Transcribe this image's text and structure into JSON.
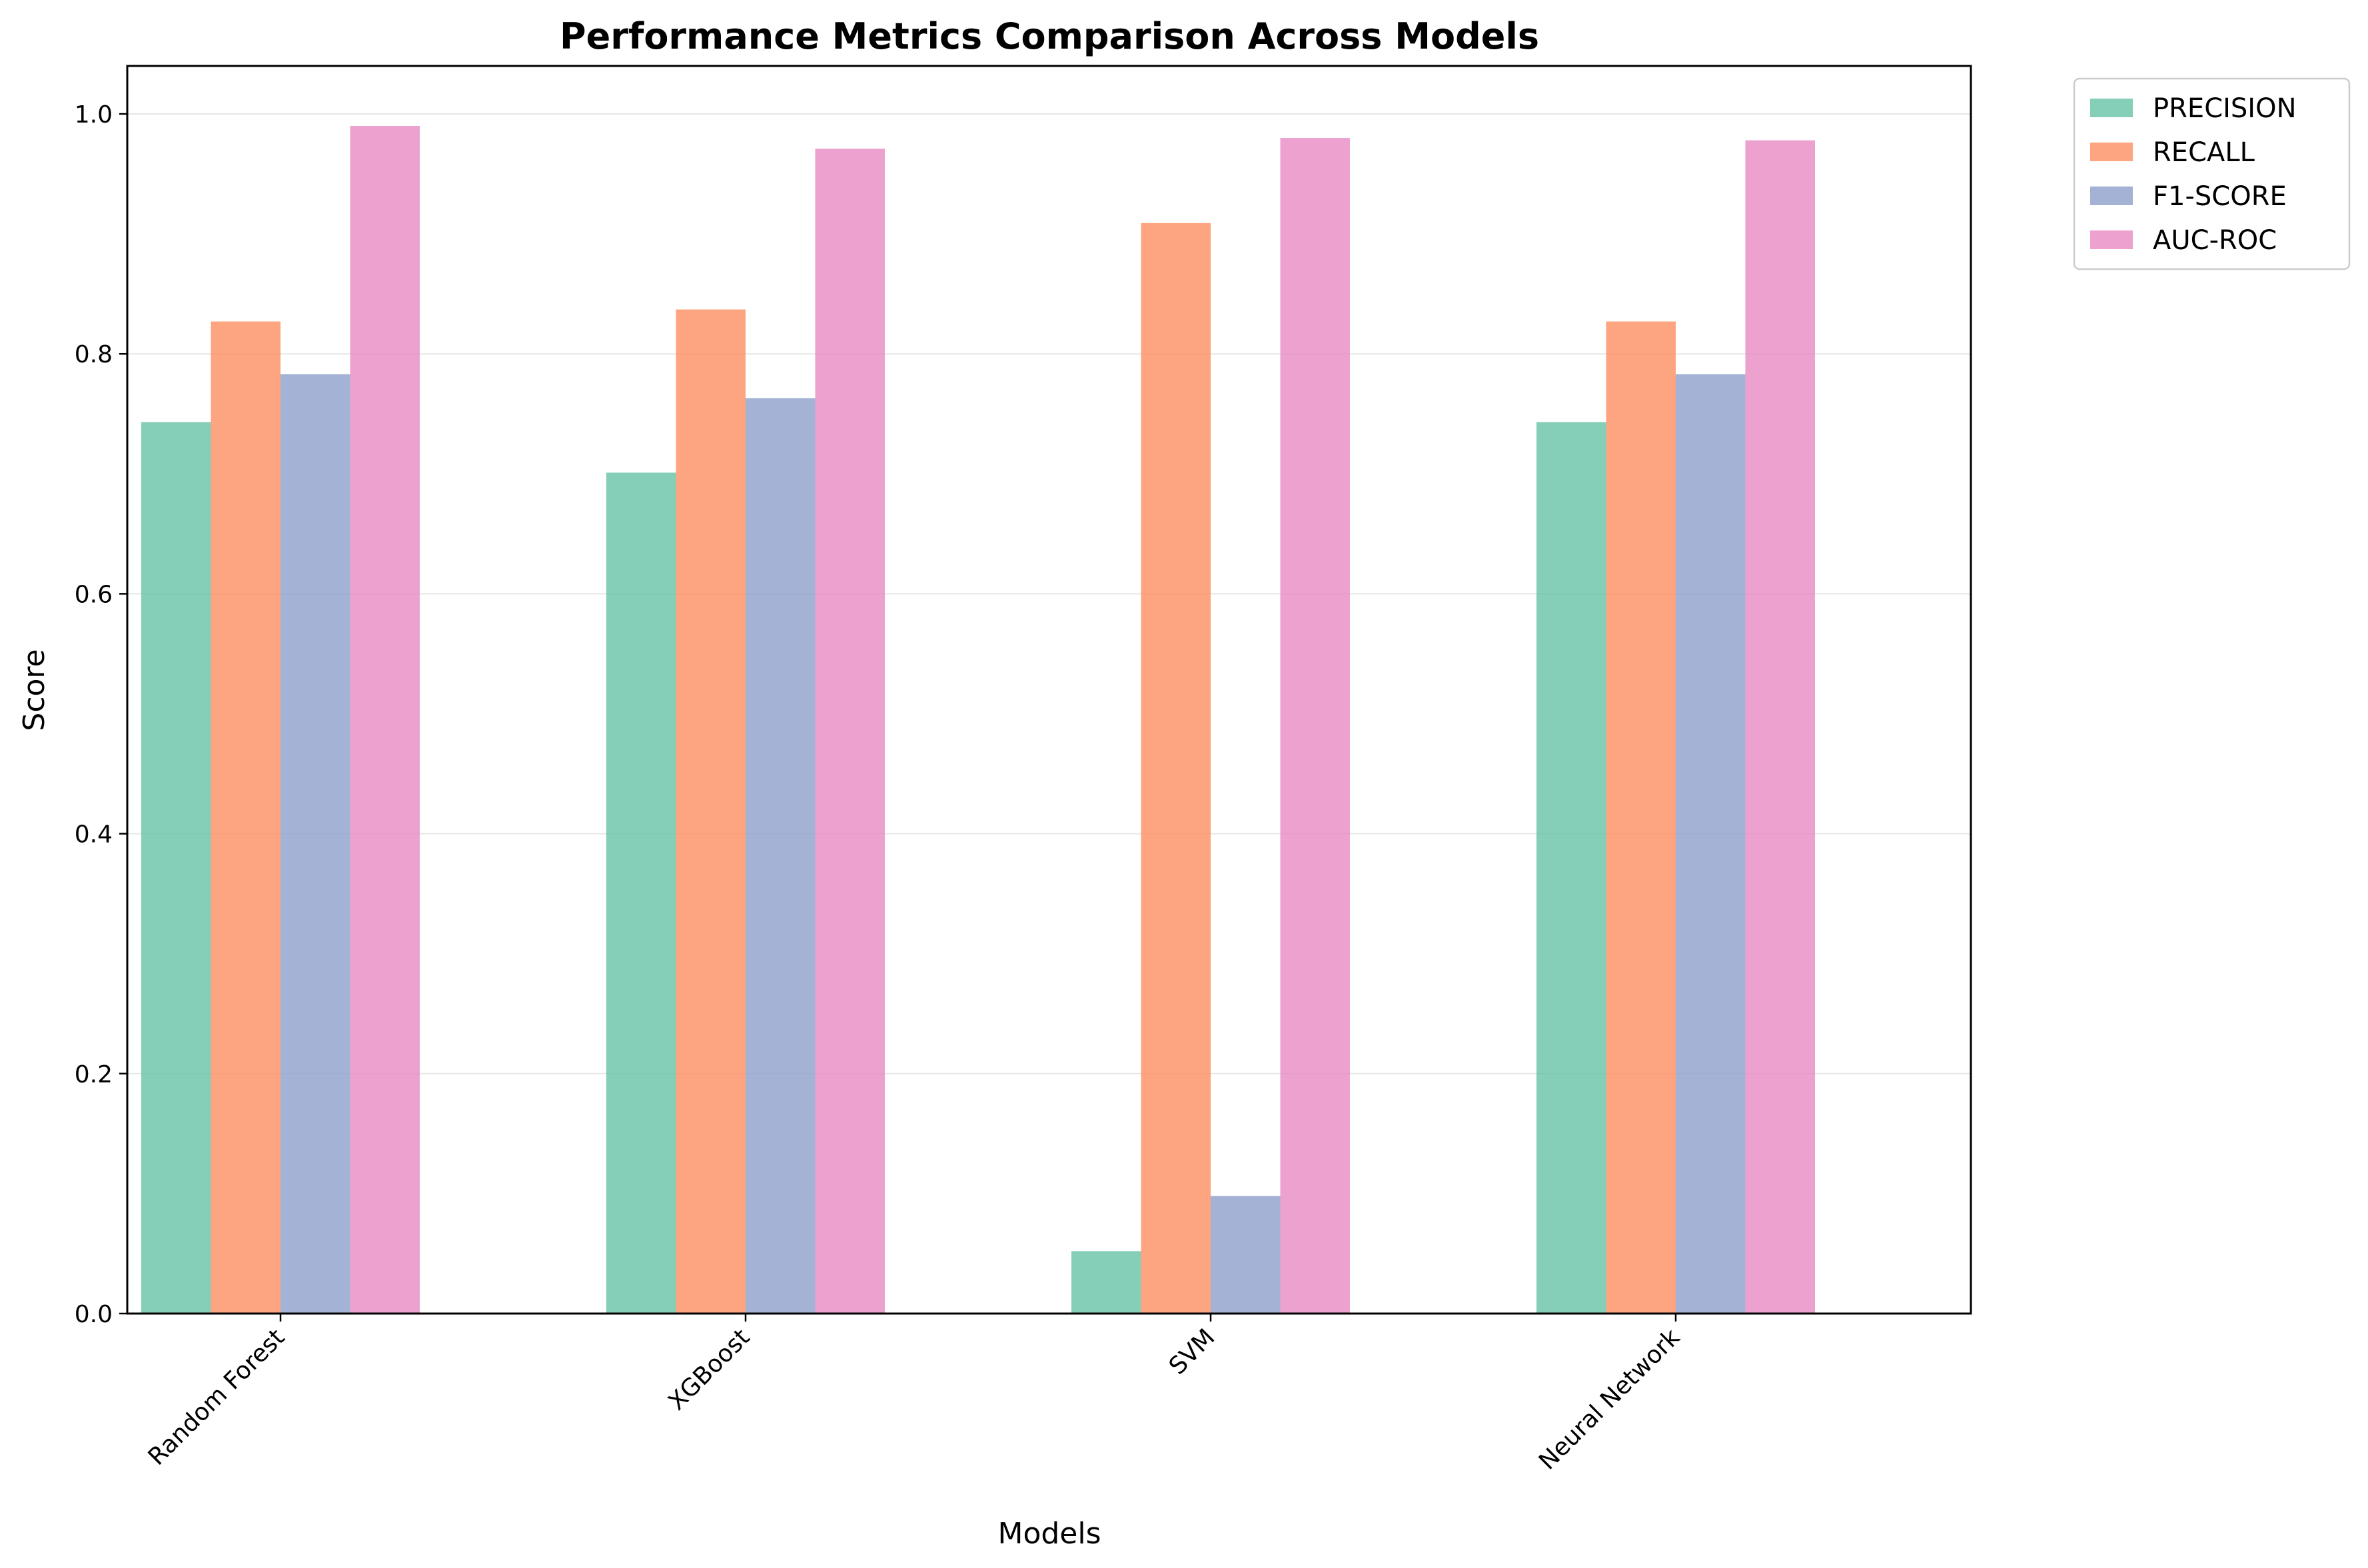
{
  "chart_data": {
    "type": "bar",
    "title": "Performance Metrics Comparison Across Models",
    "xlabel": "Models",
    "ylabel": "Score",
    "ylim": [
      0,
      1.04
    ],
    "yticks": [
      "0.0",
      "0.2",
      "0.4",
      "0.6",
      "0.8",
      "1.0"
    ],
    "grid": "horizontal",
    "legend_position": "upper-right-outside",
    "categories": [
      "Random Forest",
      "XGBoost",
      "SVM",
      "Neural Network"
    ],
    "series": [
      {
        "name": "PRECISION",
        "color": "#66c2a5",
        "values": [
          0.743,
          0.701,
          0.052,
          0.743
        ]
      },
      {
        "name": "RECALL",
        "color": "#fc8d62",
        "values": [
          0.827,
          0.837,
          0.909,
          0.827
        ]
      },
      {
        "name": "F1-SCORE",
        "color": "#8da0cb",
        "values": [
          0.783,
          0.763,
          0.098,
          0.783
        ]
      },
      {
        "name": "AUC-ROC",
        "color": "#e78ac3",
        "values": [
          0.99,
          0.971,
          0.98,
          0.978
        ]
      }
    ]
  }
}
